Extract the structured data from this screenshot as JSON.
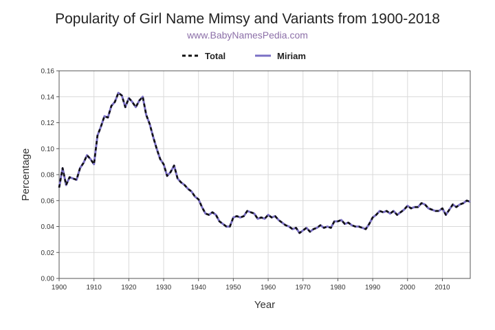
{
  "chart_data": {
    "type": "line",
    "title": "Popularity of Girl Name Mimsy and Variants from 1900-2018",
    "subtitle": "www.BabyNamesPedia.com",
    "xlabel": "Year",
    "ylabel": "Percentage",
    "xlim": [
      1900,
      2018
    ],
    "ylim": [
      0,
      0.16
    ],
    "x_ticks": [
      1900,
      1910,
      1920,
      1930,
      1940,
      1950,
      1960,
      1970,
      1980,
      1990,
      2000,
      2010
    ],
    "y_ticks": [
      "0.00",
      "0.02",
      "0.04",
      "0.06",
      "0.08",
      "0.10",
      "0.12",
      "0.14",
      "0.16"
    ],
    "grid": true,
    "legend": "top-center",
    "x": [
      1900,
      1901,
      1902,
      1903,
      1904,
      1905,
      1906,
      1907,
      1908,
      1909,
      1910,
      1911,
      1912,
      1913,
      1914,
      1915,
      1916,
      1917,
      1918,
      1919,
      1920,
      1921,
      1922,
      1923,
      1924,
      1925,
      1926,
      1927,
      1928,
      1929,
      1930,
      1931,
      1932,
      1933,
      1934,
      1935,
      1936,
      1937,
      1938,
      1939,
      1940,
      1941,
      1942,
      1943,
      1944,
      1945,
      1946,
      1947,
      1948,
      1949,
      1950,
      1951,
      1952,
      1953,
      1954,
      1955,
      1956,
      1957,
      1958,
      1959,
      1960,
      1961,
      1962,
      1963,
      1964,
      1965,
      1966,
      1967,
      1968,
      1969,
      1970,
      1971,
      1972,
      1973,
      1974,
      1975,
      1976,
      1977,
      1978,
      1979,
      1980,
      1981,
      1982,
      1983,
      1984,
      1985,
      1986,
      1987,
      1988,
      1989,
      1990,
      1991,
      1992,
      1993,
      1994,
      1995,
      1996,
      1997,
      1998,
      1999,
      2000,
      2001,
      2002,
      2003,
      2004,
      2005,
      2006,
      2007,
      2008,
      2009,
      2010,
      2011,
      2012,
      2013,
      2014,
      2015,
      2016,
      2017,
      2018
    ],
    "series": [
      {
        "name": "Total",
        "color": "#111111",
        "style": "dashed",
        "values": [
          0.07,
          0.085,
          0.072,
          0.078,
          0.077,
          0.076,
          0.085,
          0.089,
          0.095,
          0.092,
          0.088,
          0.11,
          0.117,
          0.125,
          0.124,
          0.133,
          0.136,
          0.143,
          0.141,
          0.132,
          0.139,
          0.136,
          0.132,
          0.137,
          0.14,
          0.126,
          0.119,
          0.109,
          0.1,
          0.092,
          0.088,
          0.079,
          0.082,
          0.087,
          0.077,
          0.074,
          0.072,
          0.069,
          0.067,
          0.063,
          0.061,
          0.055,
          0.05,
          0.049,
          0.051,
          0.049,
          0.044,
          0.042,
          0.04,
          0.04,
          0.047,
          0.048,
          0.047,
          0.048,
          0.052,
          0.051,
          0.05,
          0.046,
          0.047,
          0.046,
          0.049,
          0.047,
          0.048,
          0.045,
          0.043,
          0.041,
          0.04,
          0.038,
          0.039,
          0.035,
          0.037,
          0.039,
          0.036,
          0.038,
          0.039,
          0.041,
          0.039,
          0.04,
          0.039,
          0.044,
          0.044,
          0.045,
          0.042,
          0.043,
          0.041,
          0.04,
          0.04,
          0.039,
          0.038,
          0.042,
          0.047,
          0.049,
          0.052,
          0.051,
          0.052,
          0.05,
          0.052,
          0.049,
          0.051,
          0.053,
          0.056,
          0.054,
          0.055,
          0.055,
          0.058,
          0.057,
          0.054,
          0.053,
          0.052,
          0.052,
          0.054,
          0.049,
          0.053,
          0.057,
          0.055,
          0.057,
          0.058,
          0.06,
          0.059
        ]
      },
      {
        "name": "Miriam",
        "color": "#7a6fc4",
        "style": "solid",
        "values": [
          0.07,
          0.085,
          0.072,
          0.078,
          0.077,
          0.076,
          0.085,
          0.089,
          0.095,
          0.092,
          0.088,
          0.11,
          0.117,
          0.125,
          0.124,
          0.133,
          0.136,
          0.143,
          0.141,
          0.132,
          0.139,
          0.136,
          0.132,
          0.137,
          0.14,
          0.126,
          0.119,
          0.109,
          0.1,
          0.092,
          0.088,
          0.079,
          0.082,
          0.087,
          0.077,
          0.074,
          0.072,
          0.069,
          0.067,
          0.063,
          0.061,
          0.055,
          0.05,
          0.049,
          0.051,
          0.049,
          0.044,
          0.042,
          0.04,
          0.04,
          0.047,
          0.048,
          0.047,
          0.048,
          0.052,
          0.051,
          0.05,
          0.046,
          0.047,
          0.046,
          0.049,
          0.047,
          0.048,
          0.045,
          0.043,
          0.041,
          0.04,
          0.038,
          0.039,
          0.035,
          0.037,
          0.039,
          0.036,
          0.038,
          0.039,
          0.041,
          0.039,
          0.04,
          0.039,
          0.044,
          0.044,
          0.045,
          0.042,
          0.043,
          0.041,
          0.04,
          0.04,
          0.039,
          0.038,
          0.042,
          0.047,
          0.049,
          0.052,
          0.051,
          0.052,
          0.05,
          0.052,
          0.049,
          0.051,
          0.053,
          0.056,
          0.054,
          0.055,
          0.055,
          0.058,
          0.057,
          0.054,
          0.053,
          0.052,
          0.052,
          0.054,
          0.049,
          0.053,
          0.057,
          0.055,
          0.057,
          0.058,
          0.06,
          0.059
        ]
      }
    ]
  }
}
